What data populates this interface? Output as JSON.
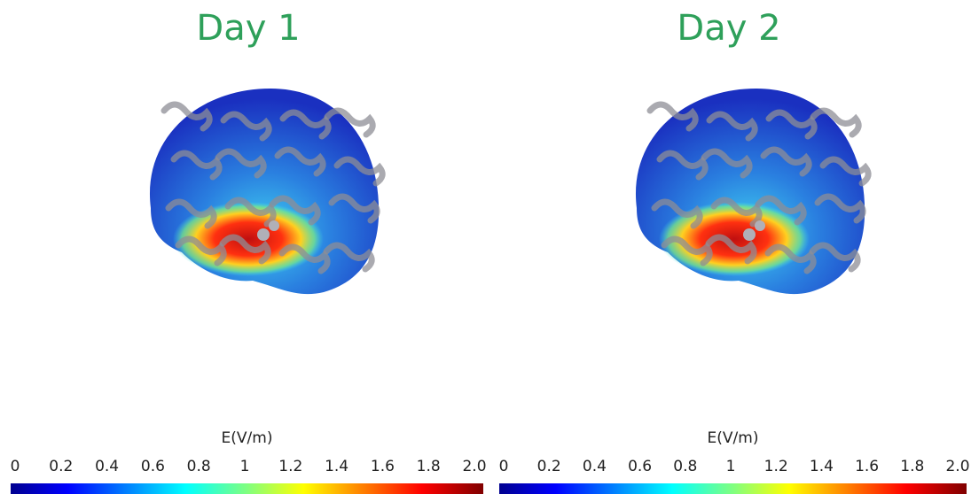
{
  "panels": [
    {
      "title": "Day 1",
      "colorbar": {
        "label": "E(V/m)",
        "lim": [
          0,
          2
        ],
        "ticks": [
          0,
          0.2,
          0.4,
          0.6,
          0.8,
          1,
          1.2,
          1.4,
          1.6,
          1.8,
          {
            "value": 2,
            "label": "2.0"
          }
        ]
      }
    },
    {
      "title": "Day 2",
      "colorbar": {
        "label": "E(V/m)",
        "lim": [
          0,
          2
        ],
        "ticks": [
          0,
          0.2,
          0.4,
          0.6,
          0.8,
          1,
          1.2,
          1.4,
          1.6,
          1.8,
          {
            "value": 2,
            "label": "2.0"
          }
        ]
      }
    }
  ]
}
